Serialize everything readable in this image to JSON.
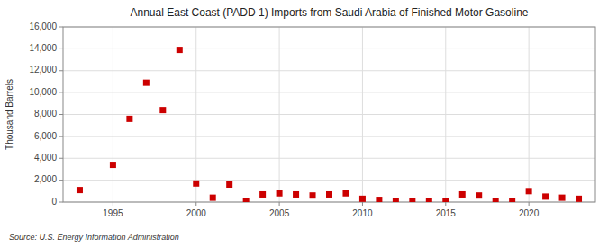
{
  "chart_data": {
    "type": "scatter",
    "title": "Annual East Coast (PADD 1) Imports from Saudi Arabia of Finished Motor Gasoline",
    "y_label": "Thousand Barrels",
    "annotations": [
      "Source: U.S. Energy Information Administration"
    ],
    "x": [
      1993,
      1995,
      1996,
      1997,
      1998,
      1999,
      2000,
      2001,
      2002,
      2003,
      2004,
      2005,
      2006,
      2007,
      2008,
      2009,
      2010,
      2011,
      2012,
      2013,
      2014,
      2015,
      2016,
      2017,
      2018,
      2019,
      2020,
      2021,
      2022,
      2023
    ],
    "values": [
      1100,
      3400,
      7600,
      10900,
      8400,
      13900,
      1700,
      400,
      1600,
      100,
      700,
      800,
      700,
      600,
      700,
      800,
      300,
      200,
      100,
      50,
      50,
      50,
      700,
      600,
      100,
      100,
      1000,
      500,
      400,
      300
    ],
    "color": "#cc0000",
    "marker": "square",
    "xlim": [
      1992,
      2024
    ],
    "ylim": [
      0,
      16000
    ],
    "xticks": [
      1995,
      2000,
      2005,
      2010,
      2015,
      2020
    ],
    "yticks": [
      0,
      {
        "value": 2000,
        "label": "2,000"
      },
      {
        "value": 4000,
        "label": "4,000"
      },
      {
        "value": 6000,
        "label": "6,000"
      },
      {
        "value": 8000,
        "label": "8,000"
      },
      {
        "value": 10000,
        "label": "10,000"
      },
      {
        "value": 12000,
        "label": "12,000"
      },
      {
        "value": 14000,
        "label": "14,000"
      },
      {
        "value": 16000,
        "label": "16,000"
      }
    ],
    "grid": true
  }
}
